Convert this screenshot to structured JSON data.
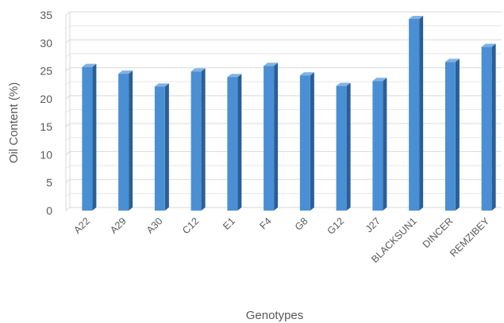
{
  "chart_data": {
    "type": "bar",
    "title": "",
    "xlabel": "Genotypes",
    "ylabel": "Oil Content (%)",
    "ylim": [
      0,
      35
    ],
    "yticks": [
      0,
      5,
      10,
      15,
      20,
      25,
      30,
      35
    ],
    "grid": true,
    "legend": "none",
    "categories": [
      "A22",
      "A29",
      "A30",
      "C12",
      "E1",
      "F4",
      "G8",
      "G12",
      "J27",
      "BLACKSUN1",
      "DINCER",
      "REMZIBEY"
    ],
    "values": [
      25.7,
      24.5,
      22.2,
      24.9,
      23.9,
      25.9,
      24.2,
      22.3,
      23.2,
      34.3,
      26.6,
      29.3
    ],
    "colors": {
      "bar_front": "#4a8fd3",
      "bar_side": "#2a5f96",
      "bar_top": "#7fb2e6",
      "grid": "#d9d9d9",
      "text": "#595959"
    }
  }
}
